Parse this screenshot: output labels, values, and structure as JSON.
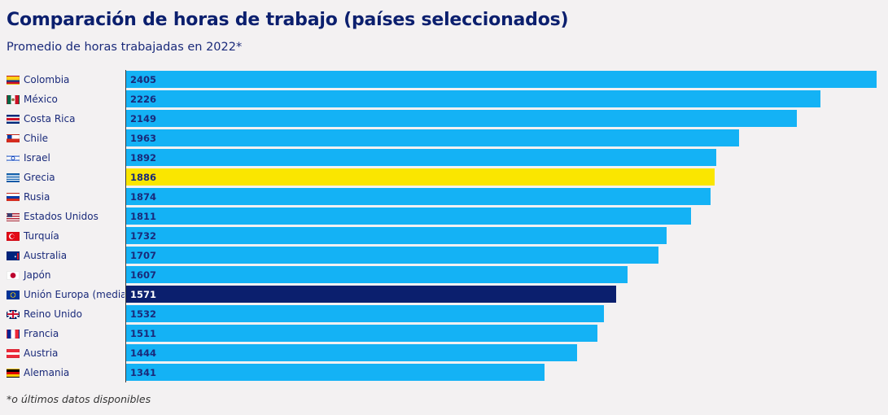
{
  "title": "Comparación de horas de trabajo (países seleccionados)",
  "subtitle": "Promedio de horas trabajadas en 2022*",
  "footnote": "*o últimos datos disponibles",
  "colors": {
    "default": "#14b2f5",
    "highlight": "#fae600",
    "eu": "#0b1f6e",
    "label_dark": "#1a2a7a",
    "label_light": "#ffffff"
  },
  "chart_data": {
    "type": "bar",
    "orientation": "horizontal",
    "title": "Comparación de horas de trabajo (países seleccionados)",
    "subtitle": "Promedio de horas trabajadas en 2022*",
    "xlim": [
      0,
      2405
    ],
    "grid": false,
    "categories": [
      "Colombia",
      "México",
      "Costa Rica",
      "Chile",
      "Israel",
      "Grecia",
      "Rusia",
      "Estados Unidos",
      "Turquía",
      "Australia",
      "Japón",
      "Unión Europa (media",
      "Reino Unido",
      "Francia",
      "Austria",
      "Alemania"
    ],
    "values": [
      2405,
      2226,
      2149,
      1963,
      1892,
      1886,
      1874,
      1811,
      1732,
      1707,
      1607,
      1571,
      1532,
      1511,
      1444,
      1341
    ],
    "bar_colors": [
      "#14b2f5",
      "#14b2f5",
      "#14b2f5",
      "#14b2f5",
      "#14b2f5",
      "#fae600",
      "#14b2f5",
      "#14b2f5",
      "#14b2f5",
      "#14b2f5",
      "#14b2f5",
      "#0b1f6e",
      "#14b2f5",
      "#14b2f5",
      "#14b2f5",
      "#14b2f5"
    ],
    "flag_icons": [
      "colombia-flag-icon",
      "mexico-flag-icon",
      "costa-rica-flag-icon",
      "chile-flag-icon",
      "israel-flag-icon",
      "greece-flag-icon",
      "russia-flag-icon",
      "usa-flag-icon",
      "turkey-flag-icon",
      "australia-flag-icon",
      "japan-flag-icon",
      "eu-flag-icon",
      "uk-flag-icon",
      "france-flag-icon",
      "austria-flag-icon",
      "germany-flag-icon"
    ]
  }
}
